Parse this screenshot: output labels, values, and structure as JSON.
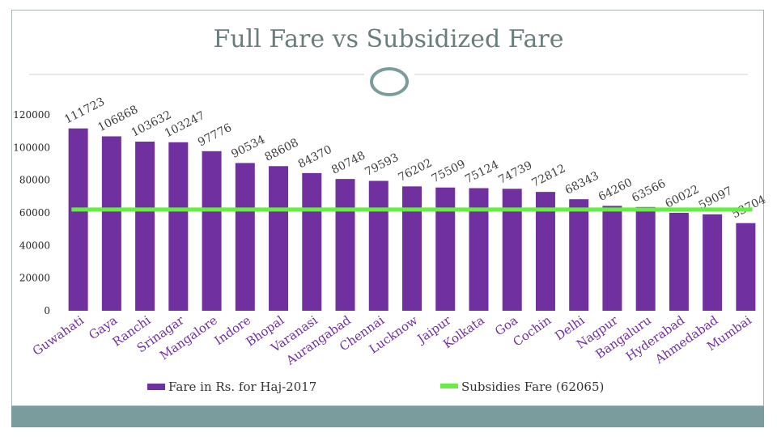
{
  "chart_data": {
    "type": "bar",
    "title": "Full Fare vs Subsidized Fare",
    "categories": [
      "Guwahati",
      "Gaya",
      "Ranchi",
      "Srinagar",
      "Mangalore",
      "Indore",
      "Bhopal",
      "Varanasi",
      "Aurangabad",
      "Chennai",
      "Lucknow",
      "Jaipur",
      "Kolkata",
      "Goa",
      "Cochin",
      "Delhi",
      "Nagpur",
      "Bangaluru",
      "Hyderabad",
      "Ahmedabad",
      "Mumbai"
    ],
    "series": [
      {
        "name": "Fare in Rs. for Haj-2017",
        "type": "bar",
        "color": "#7030a0",
        "values": [
          111723,
          106868,
          103632,
          103247,
          97776,
          90534,
          88608,
          84370,
          80748,
          79593,
          76202,
          75509,
          75124,
          74739,
          72812,
          68343,
          64260,
          63566,
          60022,
          59097,
          53704
        ]
      },
      {
        "name": "Subsidies Fare (62065)",
        "type": "line",
        "color": "#66ee44",
        "value": 62065
      }
    ],
    "data_labels": [
      "111723",
      "106868",
      "103632",
      "103247",
      "97776",
      "90534",
      "88608",
      "84370",
      "80748",
      "79593",
      "76202",
      "75509",
      "75124",
      "74739",
      "72812",
      "68343",
      "64260",
      "63566",
      "60022",
      "59097",
      "53704"
    ],
    "yticks": [
      "0",
      "20000",
      "40000",
      "60000",
      "80000",
      "100000",
      "120000"
    ],
    "ylim": [
      0,
      120000
    ],
    "xlabel": "",
    "ylabel": "",
    "legend_position": "bottom"
  }
}
